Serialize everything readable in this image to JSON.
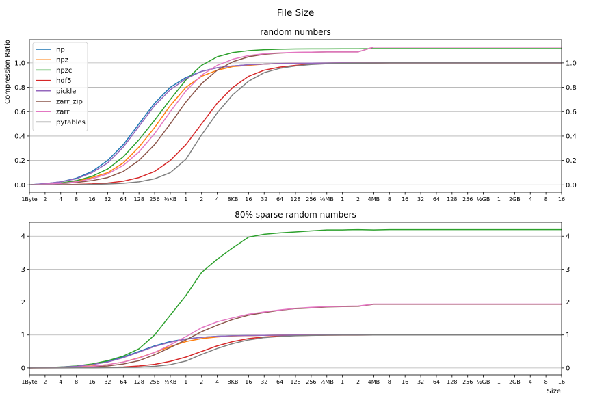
{
  "figure": {
    "suptitle": "File Size",
    "xlabel": "Size",
    "ylabel_top": "Compression Ratio"
  },
  "chart_data": [
    {
      "type": "line",
      "title": "random numbers",
      "xlabel": "",
      "ylabel": "Compression Ratio",
      "grid": "y",
      "ylim": [
        -0.06,
        1.19
      ],
      "yticks": [
        0.0,
        0.2,
        0.4,
        0.6,
        0.8,
        1.0
      ],
      "ytick_labels": [
        "0.0",
        "0.2",
        "0.4",
        "0.6",
        "0.8",
        "1.0"
      ],
      "x_tick_labels": [
        "1Byte",
        "2",
        "4",
        "8",
        "16",
        "32",
        "64",
        "128",
        "256",
        "½KB",
        "1",
        "2",
        "4",
        "8KB",
        "16",
        "32",
        "64",
        "128",
        "256",
        "½MB",
        "1",
        "2",
        "4MB",
        "8",
        "16",
        "32",
        "64",
        "128",
        "256",
        "½GB",
        "1",
        "2GB",
        "4",
        "8",
        "16"
      ],
      "legend_position": "upper-left",
      "series": [
        {
          "name": "np",
          "color": "#1f77b4",
          "values": [
            0.0,
            0.01,
            0.025,
            0.055,
            0.11,
            0.2,
            0.33,
            0.5,
            0.67,
            0.8,
            0.88,
            0.93,
            0.96,
            0.975,
            0.985,
            0.99,
            0.995,
            0.997,
            0.998,
            0.999,
            1,
            1,
            1,
            1,
            1,
            1,
            1,
            1,
            1,
            1,
            1,
            1,
            1,
            1,
            1
          ]
        },
        {
          "name": "npz",
          "color": "#ff7f0e",
          "values": [
            0.0,
            0.005,
            0.015,
            0.03,
            0.06,
            0.1,
            0.18,
            0.31,
            0.47,
            0.65,
            0.8,
            0.89,
            0.94,
            0.97,
            0.98,
            0.99,
            0.995,
            0.997,
            0.998,
            0.999,
            1,
            1,
            1,
            1,
            1,
            1,
            1,
            1,
            1,
            1,
            1,
            1,
            1,
            1,
            1
          ]
        },
        {
          "name": "npzc",
          "color": "#2ca02c",
          "values": [
            0.0,
            0.005,
            0.015,
            0.035,
            0.07,
            0.13,
            0.23,
            0.37,
            0.53,
            0.7,
            0.86,
            0.98,
            1.05,
            1.085,
            1.1,
            1.108,
            1.112,
            1.114,
            1.115,
            1.115,
            1.116,
            1.116,
            1.117,
            1.117,
            1.117,
            1.117,
            1.117,
            1.117,
            1.117,
            1.117,
            1.117,
            1.117,
            1.117,
            1.117,
            1.117
          ]
        },
        {
          "name": "hdf5",
          "color": "#d62728",
          "values": [
            0.0,
            0.001,
            0.002,
            0.004,
            0.008,
            0.015,
            0.03,
            0.06,
            0.11,
            0.2,
            0.33,
            0.5,
            0.67,
            0.8,
            0.89,
            0.94,
            0.965,
            0.98,
            0.99,
            0.995,
            0.997,
            0.998,
            0.999,
            1,
            1,
            1,
            1,
            1,
            1,
            1,
            1,
            1,
            1,
            1,
            1
          ]
        },
        {
          "name": "pickle",
          "color": "#9467bd",
          "values": [
            0.0,
            0.01,
            0.025,
            0.05,
            0.1,
            0.18,
            0.31,
            0.48,
            0.65,
            0.78,
            0.87,
            0.93,
            0.96,
            0.975,
            0.985,
            0.99,
            0.995,
            0.997,
            0.998,
            0.999,
            1,
            1,
            1,
            1,
            1,
            1,
            1,
            1,
            1,
            1,
            1,
            1,
            1,
            1,
            1
          ]
        },
        {
          "name": "zarr_zip",
          "color": "#8c564b",
          "values": [
            0.0,
            0.004,
            0.01,
            0.02,
            0.035,
            0.06,
            0.11,
            0.2,
            0.33,
            0.5,
            0.68,
            0.83,
            0.94,
            1.01,
            1.05,
            1.07,
            1.08,
            1.085,
            1.088,
            1.09,
            1.09,
            1.09,
            1.13,
            1.13,
            1.13,
            1.13,
            1.13,
            1.13,
            1.13,
            1.13,
            1.13,
            1.13,
            1.13,
            1.13,
            1.13
          ]
        },
        {
          "name": "zarr",
          "color": "#e377c2",
          "values": [
            0.0,
            0.005,
            0.012,
            0.025,
            0.05,
            0.09,
            0.16,
            0.27,
            0.42,
            0.6,
            0.77,
            0.9,
            0.98,
            1.03,
            1.06,
            1.075,
            1.082,
            1.086,
            1.088,
            1.09,
            1.09,
            1.09,
            1.13,
            1.13,
            1.13,
            1.13,
            1.13,
            1.13,
            1.13,
            1.13,
            1.13,
            1.13,
            1.13,
            1.13,
            1.13
          ]
        },
        {
          "name": "pytables",
          "color": "#7f7f7f",
          "values": [
            0.0,
            0.0,
            0.001,
            0.002,
            0.004,
            0.007,
            0.013,
            0.025,
            0.05,
            0.1,
            0.21,
            0.41,
            0.59,
            0.74,
            0.85,
            0.92,
            0.955,
            0.975,
            0.987,
            0.993,
            0.996,
            0.998,
            0.999,
            1,
            1,
            1,
            1,
            1,
            1,
            1,
            1,
            1,
            1,
            1,
            1
          ]
        }
      ]
    },
    {
      "type": "line",
      "title": "80% sparse random numbers",
      "xlabel": "Size",
      "ylabel": "",
      "grid": "y",
      "ylim": [
        -0.21,
        4.42
      ],
      "yticks": [
        0,
        1,
        2,
        3,
        4
      ],
      "ytick_labels": [
        "0",
        "1",
        "2",
        "3",
        "4"
      ],
      "x_tick_labels": [
        "1Byte",
        "2",
        "4",
        "8",
        "16",
        "32",
        "64",
        "128",
        "256",
        "½KB",
        "1",
        "2",
        "4",
        "8KB",
        "16",
        "32",
        "64",
        "128",
        "256",
        "½MB",
        "1",
        "2",
        "4MB",
        "8",
        "16",
        "32",
        "64",
        "128",
        "256",
        "½GB",
        "1",
        "2GB",
        "4",
        "8",
        "16"
      ],
      "series": [
        {
          "name": "np",
          "color": "#1f77b4",
          "values": [
            0.0,
            0.01,
            0.025,
            0.055,
            0.11,
            0.2,
            0.33,
            0.5,
            0.67,
            0.8,
            0.88,
            0.93,
            0.96,
            0.975,
            0.985,
            0.99,
            0.995,
            0.997,
            0.998,
            0.999,
            1,
            1,
            1,
            1,
            1,
            1,
            1,
            1,
            1,
            1,
            1,
            1,
            1,
            1,
            1
          ]
        },
        {
          "name": "npz",
          "color": "#ff7f0e",
          "values": [
            0.0,
            0.005,
            0.015,
            0.03,
            0.06,
            0.1,
            0.18,
            0.31,
            0.47,
            0.65,
            0.8,
            0.89,
            0.94,
            0.97,
            0.98,
            0.99,
            0.995,
            0.997,
            0.998,
            0.999,
            1,
            1,
            1,
            1,
            1,
            1,
            1,
            1,
            1,
            1,
            1,
            1,
            1,
            1,
            1
          ]
        },
        {
          "name": "npzc",
          "color": "#2ca02c",
          "values": [
            0.0,
            0.01,
            0.03,
            0.06,
            0.12,
            0.22,
            0.36,
            0.58,
            1.0,
            1.6,
            2.2,
            2.9,
            3.3,
            3.65,
            3.97,
            4.06,
            4.1,
            4.13,
            4.16,
            4.19,
            4.19,
            4.2,
            4.19,
            4.2,
            4.2,
            4.2,
            4.2,
            4.2,
            4.2,
            4.2,
            4.2,
            4.2,
            4.2,
            4.2,
            4.2
          ]
        },
        {
          "name": "hdf5",
          "color": "#d62728",
          "values": [
            0.0,
            0.001,
            0.002,
            0.004,
            0.008,
            0.015,
            0.03,
            0.06,
            0.11,
            0.2,
            0.33,
            0.5,
            0.67,
            0.8,
            0.89,
            0.94,
            0.965,
            0.98,
            0.99,
            0.995,
            0.997,
            0.998,
            0.999,
            1,
            1,
            1,
            1,
            1,
            1,
            1,
            1,
            1,
            1,
            1,
            1
          ]
        },
        {
          "name": "pickle",
          "color": "#9467bd",
          "values": [
            0.0,
            0.01,
            0.025,
            0.05,
            0.1,
            0.18,
            0.31,
            0.48,
            0.65,
            0.78,
            0.87,
            0.93,
            0.96,
            0.975,
            0.985,
            0.99,
            0.995,
            0.997,
            0.998,
            0.999,
            1,
            1,
            1,
            1,
            1,
            1,
            1,
            1,
            1,
            1,
            1,
            1,
            1,
            1,
            1
          ]
        },
        {
          "name": "zarr_zip",
          "color": "#8c564b",
          "values": [
            0.0,
            0.004,
            0.01,
            0.02,
            0.035,
            0.06,
            0.12,
            0.22,
            0.4,
            0.62,
            0.85,
            1.1,
            1.3,
            1.47,
            1.6,
            1.68,
            1.75,
            1.8,
            1.82,
            1.85,
            1.86,
            1.87,
            1.93,
            1.93,
            1.93,
            1.93,
            1.93,
            1.93,
            1.93,
            1.93,
            1.93,
            1.93,
            1.93,
            1.93,
            1.93
          ]
        },
        {
          "name": "zarr",
          "color": "#e377c2",
          "values": [
            0.0,
            0.005,
            0.012,
            0.025,
            0.05,
            0.1,
            0.18,
            0.3,
            0.47,
            0.7,
            0.95,
            1.22,
            1.4,
            1.52,
            1.63,
            1.7,
            1.76,
            1.81,
            1.84,
            1.86,
            1.87,
            1.88,
            1.94,
            1.94,
            1.94,
            1.94,
            1.94,
            1.94,
            1.94,
            1.94,
            1.94,
            1.94,
            1.94,
            1.94,
            1.94
          ]
        },
        {
          "name": "pytables",
          "color": "#7f7f7f",
          "values": [
            0.0,
            0.0,
            0.001,
            0.002,
            0.004,
            0.007,
            0.013,
            0.025,
            0.05,
            0.1,
            0.21,
            0.41,
            0.59,
            0.74,
            0.85,
            0.92,
            0.955,
            0.975,
            0.987,
            0.993,
            0.996,
            0.998,
            0.999,
            1,
            1,
            1,
            1,
            1,
            1,
            1,
            1,
            1,
            1,
            1,
            1
          ]
        }
      ]
    }
  ]
}
